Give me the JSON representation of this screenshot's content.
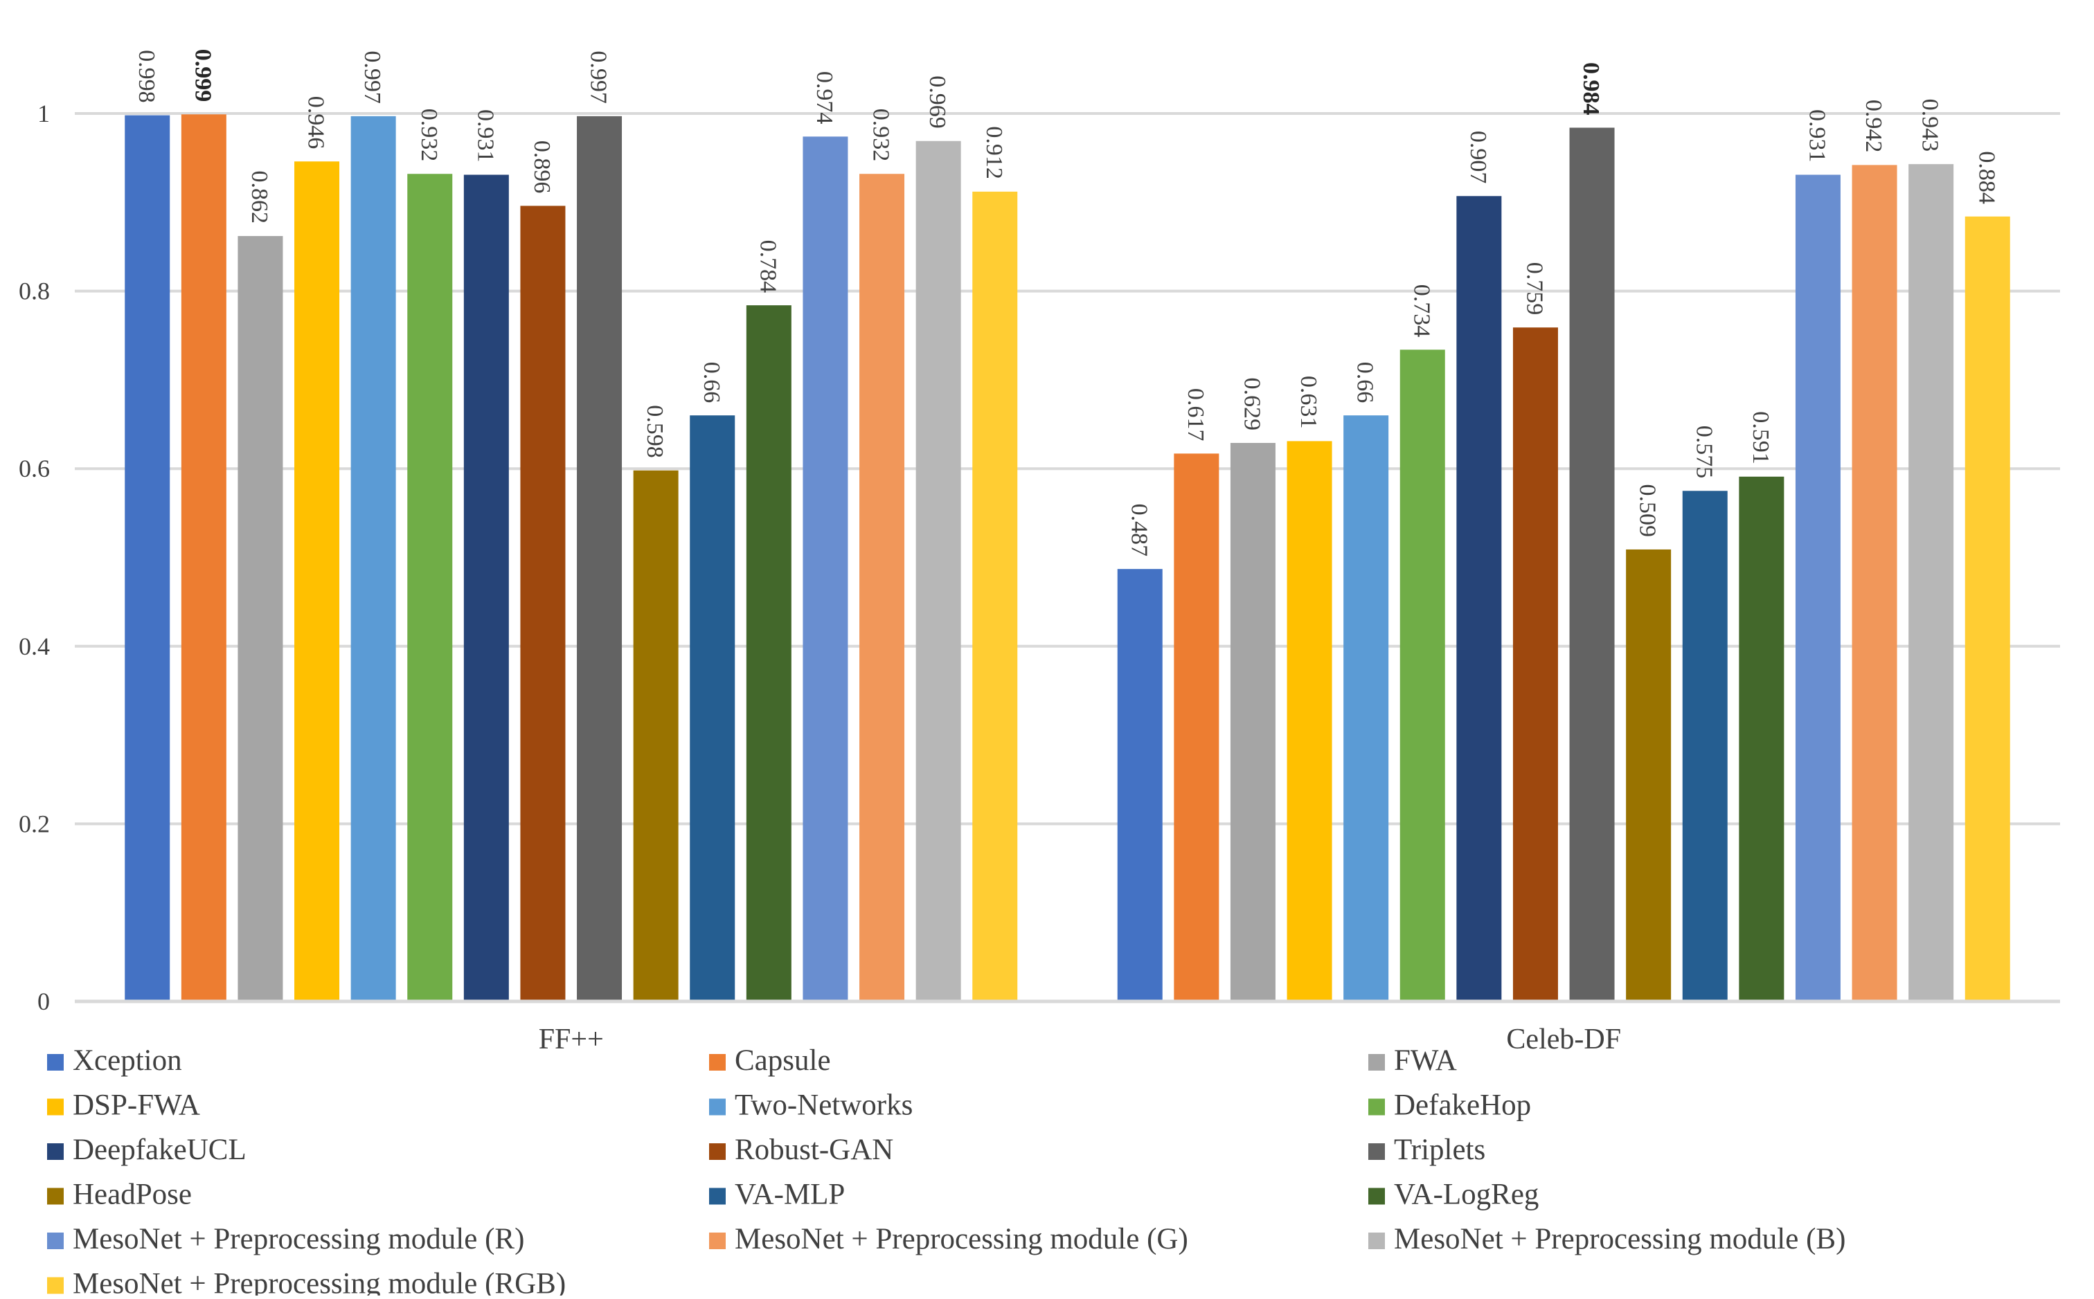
{
  "chart_data": {
    "type": "bar",
    "title": "",
    "xlabel": "",
    "ylabel": "",
    "ylim": [
      0,
      1
    ],
    "yticks": [
      "0",
      "0.2",
      "0.4",
      "0.6",
      "0.8",
      "1"
    ],
    "ytick_values": [
      0,
      0.2,
      0.4,
      0.6,
      0.8,
      1
    ],
    "grid": true,
    "legend_position": "bottom",
    "categories": [
      "FF++",
      "Celeb-DF"
    ],
    "series": [
      {
        "name": "Xception",
        "color": "#4472C4",
        "values": [
          0.998,
          0.487
        ],
        "labels": [
          "0.998",
          "0.487"
        ]
      },
      {
        "name": "Capsule",
        "color": "#ED7D31",
        "values": [
          0.999,
          0.617
        ],
        "labels": [
          "0.999",
          "0.617"
        ]
      },
      {
        "name": "FWA",
        "color": "#A5A5A5",
        "values": [
          0.862,
          0.629
        ],
        "labels": [
          "0.862",
          "0.629"
        ]
      },
      {
        "name": "DSP-FWA",
        "color": "#FFC000",
        "values": [
          0.946,
          0.631
        ],
        "labels": [
          "0.946",
          "0.631"
        ]
      },
      {
        "name": "Two-Networks",
        "color": "#5B9BD5",
        "values": [
          0.997,
          0.66
        ],
        "labels": [
          "0.997",
          "0.66"
        ]
      },
      {
        "name": "DefakeHop",
        "color": "#70AD47",
        "values": [
          0.932,
          0.734
        ],
        "labels": [
          "0.932",
          "0.734"
        ]
      },
      {
        "name": "DeepfakeUCL",
        "color": "#264478",
        "values": [
          0.931,
          0.907
        ],
        "labels": [
          "0.931",
          "0.907"
        ]
      },
      {
        "name": "Robust-GAN",
        "color": "#9E480E",
        "values": [
          0.896,
          0.759
        ],
        "labels": [
          "0.896",
          "0.759"
        ]
      },
      {
        "name": "Triplets",
        "color": "#636363",
        "values": [
          0.997,
          0.984
        ],
        "labels": [
          "0.997",
          "0.984"
        ]
      },
      {
        "name": "HeadPose",
        "color": "#997300",
        "values": [
          0.598,
          0.509
        ],
        "labels": [
          "0.598",
          "0.509"
        ]
      },
      {
        "name": "VA-MLP",
        "color": "#255E91",
        "values": [
          0.66,
          0.575
        ],
        "labels": [
          "0.66",
          "0.575"
        ]
      },
      {
        "name": "VA-LogReg",
        "color": "#43682B",
        "values": [
          0.784,
          0.591
        ],
        "labels": [
          "0.784",
          "0.591"
        ]
      },
      {
        "name": "MesoNet + Preprocessing module (R)",
        "color": "#698ED0",
        "values": [
          0.974,
          0.931
        ],
        "labels": [
          "0.974",
          "0.931"
        ]
      },
      {
        "name": "MesoNet + Preprocessing module (G)",
        "color": "#F1975A",
        "values": [
          0.932,
          0.942
        ],
        "labels": [
          "0.932",
          "0.942"
        ]
      },
      {
        "name": "MesoNet + Preprocessing module (B)",
        "color": "#B7B7B7",
        "values": [
          0.969,
          0.943
        ],
        "labels": [
          "0.969",
          "0.943"
        ]
      },
      {
        "name": "MesoNet + Preprocessing module (RGB)",
        "color": "#FFCD33",
        "values": [
          0.912,
          0.884
        ],
        "labels": [
          "0.912",
          "0.884"
        ]
      }
    ],
    "bold_labels": [
      {
        "series": 1,
        "category": 0
      },
      {
        "series": 8,
        "category": 1
      }
    ]
  }
}
